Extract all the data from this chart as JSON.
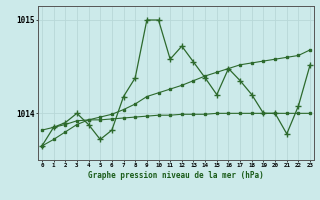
{
  "x": [
    0,
    1,
    2,
    3,
    4,
    5,
    6,
    7,
    8,
    9,
    10,
    11,
    12,
    13,
    14,
    15,
    16,
    17,
    18,
    19,
    20,
    21,
    22,
    23
  ],
  "y_main": [
    1013.65,
    1013.85,
    1013.9,
    1014.0,
    1013.88,
    1013.72,
    1013.82,
    1014.18,
    1014.38,
    1015.0,
    1015.0,
    1014.58,
    1014.72,
    1014.55,
    1014.38,
    1014.2,
    1014.48,
    1014.35,
    1014.2,
    1014.0,
    1014.0,
    1013.78,
    1014.08,
    1014.52
  ],
  "y_trend": [
    1013.65,
    1013.72,
    1013.8,
    1013.88,
    1013.93,
    1013.96,
    1013.99,
    1014.04,
    1014.1,
    1014.18,
    1014.22,
    1014.26,
    1014.3,
    1014.35,
    1014.4,
    1014.44,
    1014.48,
    1014.52,
    1014.54,
    1014.56,
    1014.58,
    1014.6,
    1014.62,
    1014.68
  ],
  "y_flat": [
    1013.82,
    1013.85,
    1013.88,
    1013.92,
    1013.93,
    1013.93,
    1013.94,
    1013.95,
    1013.96,
    1013.97,
    1013.98,
    1013.98,
    1013.99,
    1013.99,
    1013.99,
    1014.0,
    1014.0,
    1014.0,
    1014.0,
    1014.0,
    1014.0,
    1014.0,
    1014.0,
    1014.0
  ],
  "line_color": "#2d6a2d",
  "bg_color": "#cceaea",
  "grid_color_v": "#b8d8d8",
  "grid_color_h": "#b8d8d8",
  "title": "Graphe pression niveau de la mer (hPa)",
  "ylim": [
    1013.5,
    1015.15
  ],
  "yticks": [
    1014,
    1015
  ],
  "xlim": [
    -0.3,
    23.3
  ],
  "xticks": [
    0,
    1,
    2,
    3,
    4,
    5,
    6,
    7,
    8,
    9,
    10,
    11,
    12,
    13,
    14,
    15,
    16,
    17,
    18,
    19,
    20,
    21,
    22,
    23
  ]
}
